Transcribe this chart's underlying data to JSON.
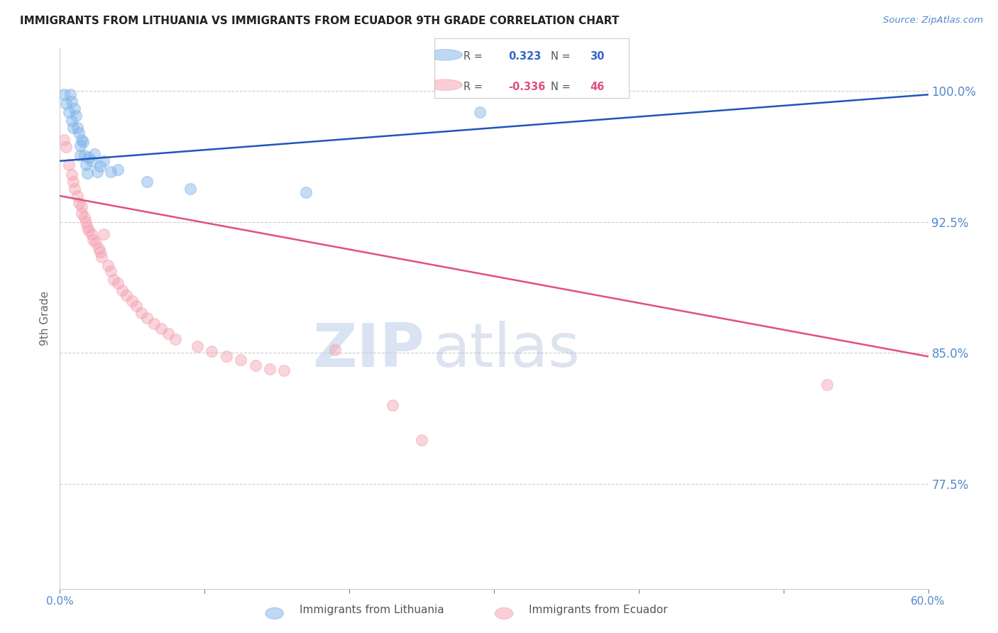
{
  "title": "IMMIGRANTS FROM LITHUANIA VS IMMIGRANTS FROM ECUADOR 9TH GRADE CORRELATION CHART",
  "source": "Source: ZipAtlas.com",
  "ylabel": "9th Grade",
  "ytick_labels": [
    "100.0%",
    "92.5%",
    "85.0%",
    "77.5%"
  ],
  "ytick_values": [
    1.0,
    0.925,
    0.85,
    0.775
  ],
  "xlim": [
    0.0,
    0.6
  ],
  "ylim": [
    0.715,
    1.025
  ],
  "legend_blue_r": "0.323",
  "legend_blue_n": "30",
  "legend_pink_r": "-0.336",
  "legend_pink_n": "46",
  "blue_color": "#7EB3E8",
  "pink_color": "#F4A0B0",
  "blue_line_color": "#2255BB",
  "pink_line_color": "#E05080",
  "watermark_zip": "ZIP",
  "watermark_atlas": "atlas",
  "blue_scatter": [
    [
      0.003,
      0.998
    ],
    [
      0.004,
      0.993
    ],
    [
      0.006,
      0.988
    ],
    [
      0.007,
      0.998
    ],
    [
      0.008,
      0.994
    ],
    [
      0.008,
      0.983
    ],
    [
      0.009,
      0.979
    ],
    [
      0.01,
      0.99
    ],
    [
      0.011,
      0.986
    ],
    [
      0.012,
      0.979
    ],
    [
      0.013,
      0.976
    ],
    [
      0.014,
      0.969
    ],
    [
      0.014,
      0.963
    ],
    [
      0.015,
      0.972
    ],
    [
      0.016,
      0.971
    ],
    [
      0.017,
      0.963
    ],
    [
      0.018,
      0.958
    ],
    [
      0.019,
      0.953
    ],
    [
      0.02,
      0.962
    ],
    [
      0.022,
      0.96
    ],
    [
      0.024,
      0.964
    ],
    [
      0.026,
      0.954
    ],
    [
      0.028,
      0.957
    ],
    [
      0.03,
      0.96
    ],
    [
      0.035,
      0.954
    ],
    [
      0.04,
      0.955
    ],
    [
      0.06,
      0.948
    ],
    [
      0.09,
      0.944
    ],
    [
      0.17,
      0.942
    ],
    [
      0.29,
      0.988
    ]
  ],
  "pink_scatter": [
    [
      0.003,
      0.972
    ],
    [
      0.004,
      0.968
    ],
    [
      0.006,
      0.958
    ],
    [
      0.008,
      0.952
    ],
    [
      0.009,
      0.948
    ],
    [
      0.01,
      0.944
    ],
    [
      0.012,
      0.94
    ],
    [
      0.013,
      0.936
    ],
    [
      0.015,
      0.934
    ],
    [
      0.015,
      0.93
    ],
    [
      0.017,
      0.928
    ],
    [
      0.018,
      0.925
    ],
    [
      0.019,
      0.922
    ],
    [
      0.02,
      0.92
    ],
    [
      0.022,
      0.918
    ],
    [
      0.023,
      0.915
    ],
    [
      0.025,
      0.913
    ],
    [
      0.027,
      0.91
    ],
    [
      0.028,
      0.908
    ],
    [
      0.029,
      0.905
    ],
    [
      0.03,
      0.918
    ],
    [
      0.033,
      0.9
    ],
    [
      0.035,
      0.897
    ],
    [
      0.037,
      0.892
    ],
    [
      0.04,
      0.89
    ],
    [
      0.043,
      0.886
    ],
    [
      0.046,
      0.883
    ],
    [
      0.05,
      0.88
    ],
    [
      0.053,
      0.877
    ],
    [
      0.056,
      0.873
    ],
    [
      0.06,
      0.87
    ],
    [
      0.065,
      0.867
    ],
    [
      0.07,
      0.864
    ],
    [
      0.075,
      0.861
    ],
    [
      0.08,
      0.858
    ],
    [
      0.095,
      0.854
    ],
    [
      0.105,
      0.851
    ],
    [
      0.115,
      0.848
    ],
    [
      0.125,
      0.846
    ],
    [
      0.135,
      0.843
    ],
    [
      0.145,
      0.841
    ],
    [
      0.155,
      0.84
    ],
    [
      0.19,
      0.852
    ],
    [
      0.23,
      0.82
    ],
    [
      0.53,
      0.832
    ],
    [
      0.25,
      0.8
    ]
  ],
  "blue_trendline_x": [
    0.0,
    0.6
  ],
  "blue_trendline_y": [
    0.96,
    0.998
  ],
  "pink_trendline_x": [
    0.0,
    0.6
  ],
  "pink_trendline_y": [
    0.94,
    0.848
  ]
}
